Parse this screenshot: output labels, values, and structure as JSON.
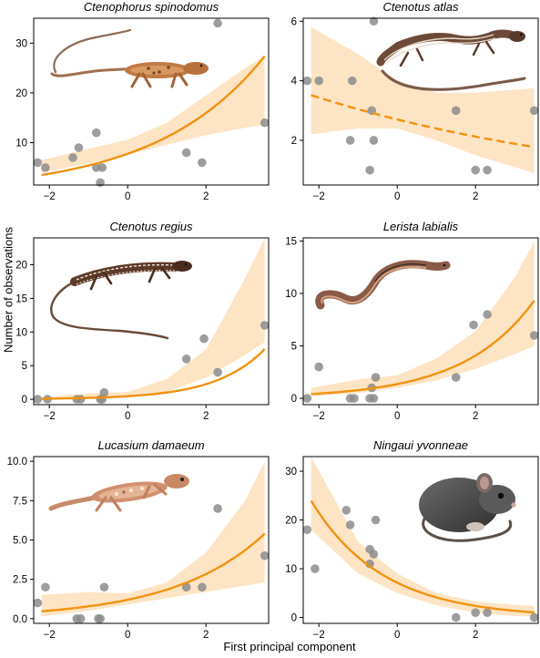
{
  "figure": {
    "ylabel": "Number of observations",
    "xlabel": "First principal component"
  },
  "colors": {
    "line": "#f0920f",
    "band": "#fde4c4",
    "point": "#8c8c8c",
    "axis": "#000000"
  },
  "chart_data": [
    {
      "type": "scatter",
      "title": "Ctenophorus spinodomus",
      "image": "lizard-photo",
      "xlim": [
        -2.4,
        3.6
      ],
      "ylim": [
        1.5,
        35
      ],
      "xticks": [
        -2,
        0,
        2
      ],
      "yticks": [
        10,
        20,
        30
      ],
      "points": [
        [
          -2.3,
          6
        ],
        [
          -2.1,
          5
        ],
        [
          -1.4,
          7
        ],
        [
          -1.25,
          9
        ],
        [
          -0.8,
          12
        ],
        [
          -0.8,
          5
        ],
        [
          -0.65,
          5
        ],
        [
          -0.7,
          2
        ],
        [
          1.5,
          8
        ],
        [
          1.9,
          6
        ],
        [
          2.3,
          34
        ],
        [
          3.5,
          14
        ]
      ],
      "trend": {
        "style": "solid",
        "a": 2.05,
        "b": 0.36
      },
      "band": [
        [
          -2.2,
          4.0,
          6.5
        ],
        [
          -1,
          5.8,
          8.8
        ],
        [
          0,
          7.6,
          10.6
        ],
        [
          1,
          9.6,
          14.0
        ],
        [
          2,
          11.5,
          19.5
        ],
        [
          3,
          13.0,
          25.0
        ],
        [
          3.5,
          13.6,
          27.5
        ]
      ]
    },
    {
      "type": "scatter",
      "title": "Ctenotus atlas",
      "image": "striped-skink-photo",
      "xlim": [
        -2.4,
        3.6
      ],
      "ylim": [
        0.5,
        6.1
      ],
      "xticks": [
        -2,
        0,
        2
      ],
      "yticks": [
        2,
        4,
        6
      ],
      "points": [
        [
          -2.3,
          4
        ],
        [
          -2.0,
          4
        ],
        [
          -1.2,
          2
        ],
        [
          -1.15,
          4
        ],
        [
          -0.7,
          1
        ],
        [
          -0.65,
          3
        ],
        [
          -0.6,
          6
        ],
        [
          -0.6,
          2
        ],
        [
          1.5,
          3
        ],
        [
          2.0,
          1
        ],
        [
          2.3,
          1
        ],
        [
          3.5,
          3
        ]
      ],
      "trend": {
        "style": "dashed",
        "a": 0.994,
        "b": -0.12
      },
      "band": [
        [
          -2.2,
          2.2,
          5.8
        ],
        [
          -1,
          2.4,
          4.9
        ],
        [
          0,
          2.4,
          4.0
        ],
        [
          1,
          2.0,
          3.6
        ],
        [
          2,
          1.5,
          3.6
        ],
        [
          3,
          1.1,
          3.7
        ],
        [
          3.5,
          0.9,
          3.75
        ]
      ]
    },
    {
      "type": "scatter",
      "title": "Ctenotus regius",
      "image": "regal-skink-photo",
      "xlim": [
        -2.4,
        3.6
      ],
      "ylim": [
        -0.8,
        24
      ],
      "xticks": [
        -2,
        0,
        2
      ],
      "yticks": [
        0,
        5,
        10,
        15,
        20
      ],
      "points": [
        [
          -2.3,
          0
        ],
        [
          -2.05,
          0
        ],
        [
          -1.3,
          0
        ],
        [
          -1.2,
          0
        ],
        [
          -0.7,
          0
        ],
        [
          -0.65,
          0
        ],
        [
          -0.6,
          1
        ],
        [
          1.5,
          6
        ],
        [
          1.95,
          9
        ],
        [
          2.3,
          4
        ],
        [
          3.5,
          11
        ]
      ],
      "trend": {
        "style": "solid",
        "a": -0.79,
        "b": 0.8
      },
      "band": [
        [
          -2.2,
          0.0,
          0.3
        ],
        [
          -1,
          0.1,
          0.9
        ],
        [
          0,
          0.4,
          1.1
        ],
        [
          1,
          1.1,
          3.0
        ],
        [
          2,
          3.2,
          7.4
        ],
        [
          3,
          6.6,
          18.0
        ],
        [
          3.5,
          8.5,
          26.0
        ]
      ]
    },
    {
      "type": "scatter",
      "title": "Lerista labialis",
      "image": "legless-skink-photo",
      "xlim": [
        -2.4,
        3.6
      ],
      "ylim": [
        -0.6,
        15.3
      ],
      "xticks": [
        -2,
        0,
        2
      ],
      "yticks": [
        0,
        5,
        10,
        15
      ],
      "points": [
        [
          -2.3,
          0
        ],
        [
          -2.0,
          3
        ],
        [
          -1.2,
          0
        ],
        [
          -1.1,
          0
        ],
        [
          -0.7,
          0
        ],
        [
          -0.65,
          1
        ],
        [
          -0.6,
          0
        ],
        [
          -0.55,
          2
        ],
        [
          1.5,
          2
        ],
        [
          1.95,
          7
        ],
        [
          2.3,
          8
        ],
        [
          3.5,
          6
        ]
      ],
      "trend": {
        "style": "solid",
        "a": 0.307,
        "b": 0.55
      },
      "band": [
        [
          -2.2,
          0.2,
          1.0
        ],
        [
          -1,
          0.5,
          1.8
        ],
        [
          0,
          1.0,
          2.2
        ],
        [
          1,
          1.7,
          3.8
        ],
        [
          2,
          2.8,
          6.4
        ],
        [
          3,
          4.2,
          11.5
        ],
        [
          3.5,
          5.0,
          15.0
        ]
      ]
    },
    {
      "type": "scatter",
      "title": "Lucasium damaeum",
      "image": "gecko-photo",
      "xlim": [
        -2.4,
        3.6
      ],
      "ylim": [
        -0.3,
        10.3
      ],
      "xticks": [
        -2,
        0,
        2
      ],
      "yticks": [
        0.0,
        2.5,
        5.0,
        7.5,
        10.0
      ],
      "ytick_labels": [
        "0.0",
        "2.5",
        "5.0",
        "7.5",
        "10.0"
      ],
      "points": [
        [
          -2.3,
          1
        ],
        [
          -2.1,
          2
        ],
        [
          -1.3,
          0
        ],
        [
          -1.2,
          0
        ],
        [
          -0.75,
          0
        ],
        [
          -0.7,
          0
        ],
        [
          -0.6,
          2
        ],
        [
          1.5,
          2
        ],
        [
          1.9,
          2
        ],
        [
          2.3,
          7
        ],
        [
          3.5,
          4
        ]
      ],
      "trend": {
        "style": "solid",
        "a": 0.182,
        "b": 0.43
      },
      "band": [
        [
          -2.2,
          0.15,
          1.5
        ],
        [
          -1,
          0.5,
          1.7
        ],
        [
          0,
          0.9,
          1.6
        ],
        [
          1,
          1.3,
          2.3
        ],
        [
          2,
          1.7,
          4.2
        ],
        [
          3,
          2.1,
          7.5
        ],
        [
          3.5,
          2.3,
          10.0
        ]
      ]
    },
    {
      "type": "scatter",
      "title": "Ningaui yvonneae",
      "image": "mouse-photo",
      "xlim": [
        -2.4,
        3.6
      ],
      "ylim": [
        -1.2,
        33
      ],
      "xticks": [
        -2,
        0,
        2
      ],
      "yticks": [
        0,
        10,
        20,
        30
      ],
      "points": [
        [
          -2.3,
          18
        ],
        [
          -2.1,
          10
        ],
        [
          -1.3,
          22
        ],
        [
          -1.2,
          19
        ],
        [
          -0.7,
          14
        ],
        [
          -0.7,
          11
        ],
        [
          -0.6,
          13
        ],
        [
          -0.55,
          20
        ],
        [
          1.5,
          0
        ],
        [
          2.0,
          1
        ],
        [
          2.3,
          1
        ],
        [
          3.5,
          0
        ]
      ],
      "trend": {
        "style": "solid",
        "a": 1.966,
        "b": -0.55
      },
      "band": [
        [
          -2.2,
          18.0,
          33.0
        ],
        [
          -1,
          9.0,
          15.5
        ],
        [
          0,
          5.0,
          9.0
        ],
        [
          1,
          2.5,
          5.0
        ],
        [
          2,
          1.0,
          3.3
        ],
        [
          3,
          0.3,
          2.6
        ],
        [
          3.5,
          0.2,
          2.4
        ]
      ]
    }
  ]
}
